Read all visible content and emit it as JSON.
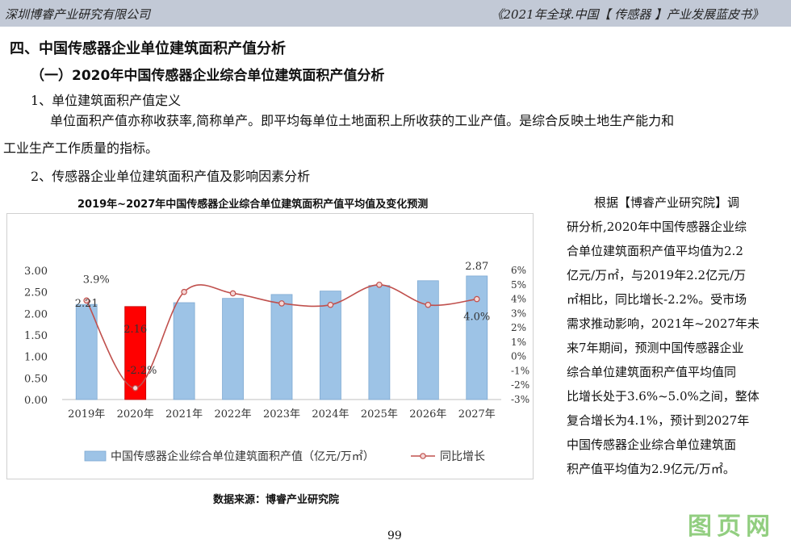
{
  "header": {
    "left": "深圳博睿产业研究有限公司",
    "right": "《2021年全球.中国【 传感器 】产业发展蓝皮书》"
  },
  "section_title": "四、中国传感器企业单位建筑面积产值分析",
  "sub_title": "（一）2020年中国传感器企业综合单位建筑面积产值分析",
  "item1": "1、单位建筑面积产值定义",
  "para1_line1": "单位面积产值亦称收获率,简称单产。即平均每单位土地面积上所收获的工业产值。是综合反映土地生产能力和",
  "para1_line2": "工业生产工作质量的指标。",
  "item2": "2、传感器企业单位建筑面积产值及影响因素分析",
  "side_text": [
    "根据【博睿产业研究院】调",
    "研分析,2020年中国传感器企业综",
    "合单位建筑面积产值平均值为2.2",
    "亿元/万㎡，与2019年2.2亿元/万",
    "㎡相比，同比增长-2.2%。受市场",
    "需求推动影响，2021年~2027年未",
    "来7年期间，预测中国传感器企业",
    "综合单位建筑面积产值平均值同",
    "比增长处于3.6%~5.0%之间，整体",
    "复合增长为4.1%，预计到2027年",
    "中国传感器企业综合单位建筑面",
    "积产值平均值为2.9亿元/万㎡。"
  ],
  "source": "数据来源：博睿产业研究院",
  "page_number": "99",
  "watermark": "图页网",
  "colors": {
    "bar": "#9dc3e6",
    "bar_highlight": "#ff0000",
    "line": "#c0504d",
    "header_bg": "#c2c9d6"
  },
  "chart_data": {
    "type": "bar",
    "title": "2019年~2027年中国传感器企业综合单位建筑面积产值平均值及变化预测",
    "categories": [
      "2019年",
      "2020年",
      "2021年",
      "2022年",
      "2023年",
      "2024年",
      "2025年",
      "2026年",
      "2027年"
    ],
    "series": [
      {
        "name": "中国传感器企业综合单位建筑面积产值（亿元/万㎡）",
        "type": "bar",
        "values": [
          2.21,
          2.16,
          2.25,
          2.35,
          2.44,
          2.52,
          2.65,
          2.76,
          2.87
        ]
      },
      {
        "name": "同比增长",
        "type": "line",
        "values": [
          3.9,
          -2.2,
          4.5,
          4.4,
          3.7,
          3.6,
          5.0,
          3.6,
          4.0
        ]
      }
    ],
    "bar_labels": [
      {
        "index": 0,
        "text": "2.21"
      },
      {
        "index": 1,
        "text": "2.16"
      },
      {
        "index": 8,
        "text": "2.87"
      }
    ],
    "line_labels": [
      {
        "index": 0,
        "text": "3.9%"
      },
      {
        "index": 1,
        "text": "-2.2%"
      },
      {
        "index": 8,
        "text": "4.0%"
      }
    ],
    "ylim_left": [
      0,
      3.0
    ],
    "yticks_left": [
      "0.00",
      "0.50",
      "1.00",
      "1.50",
      "2.00",
      "2.50",
      "3.00"
    ],
    "ylim_right": [
      -3,
      6
    ],
    "yticks_right": [
      "-3%",
      "-2%",
      "-1%",
      "0%",
      "1%",
      "2%",
      "3%",
      "4%",
      "5%",
      "6%"
    ],
    "grid": false,
    "legend": "bottom"
  }
}
